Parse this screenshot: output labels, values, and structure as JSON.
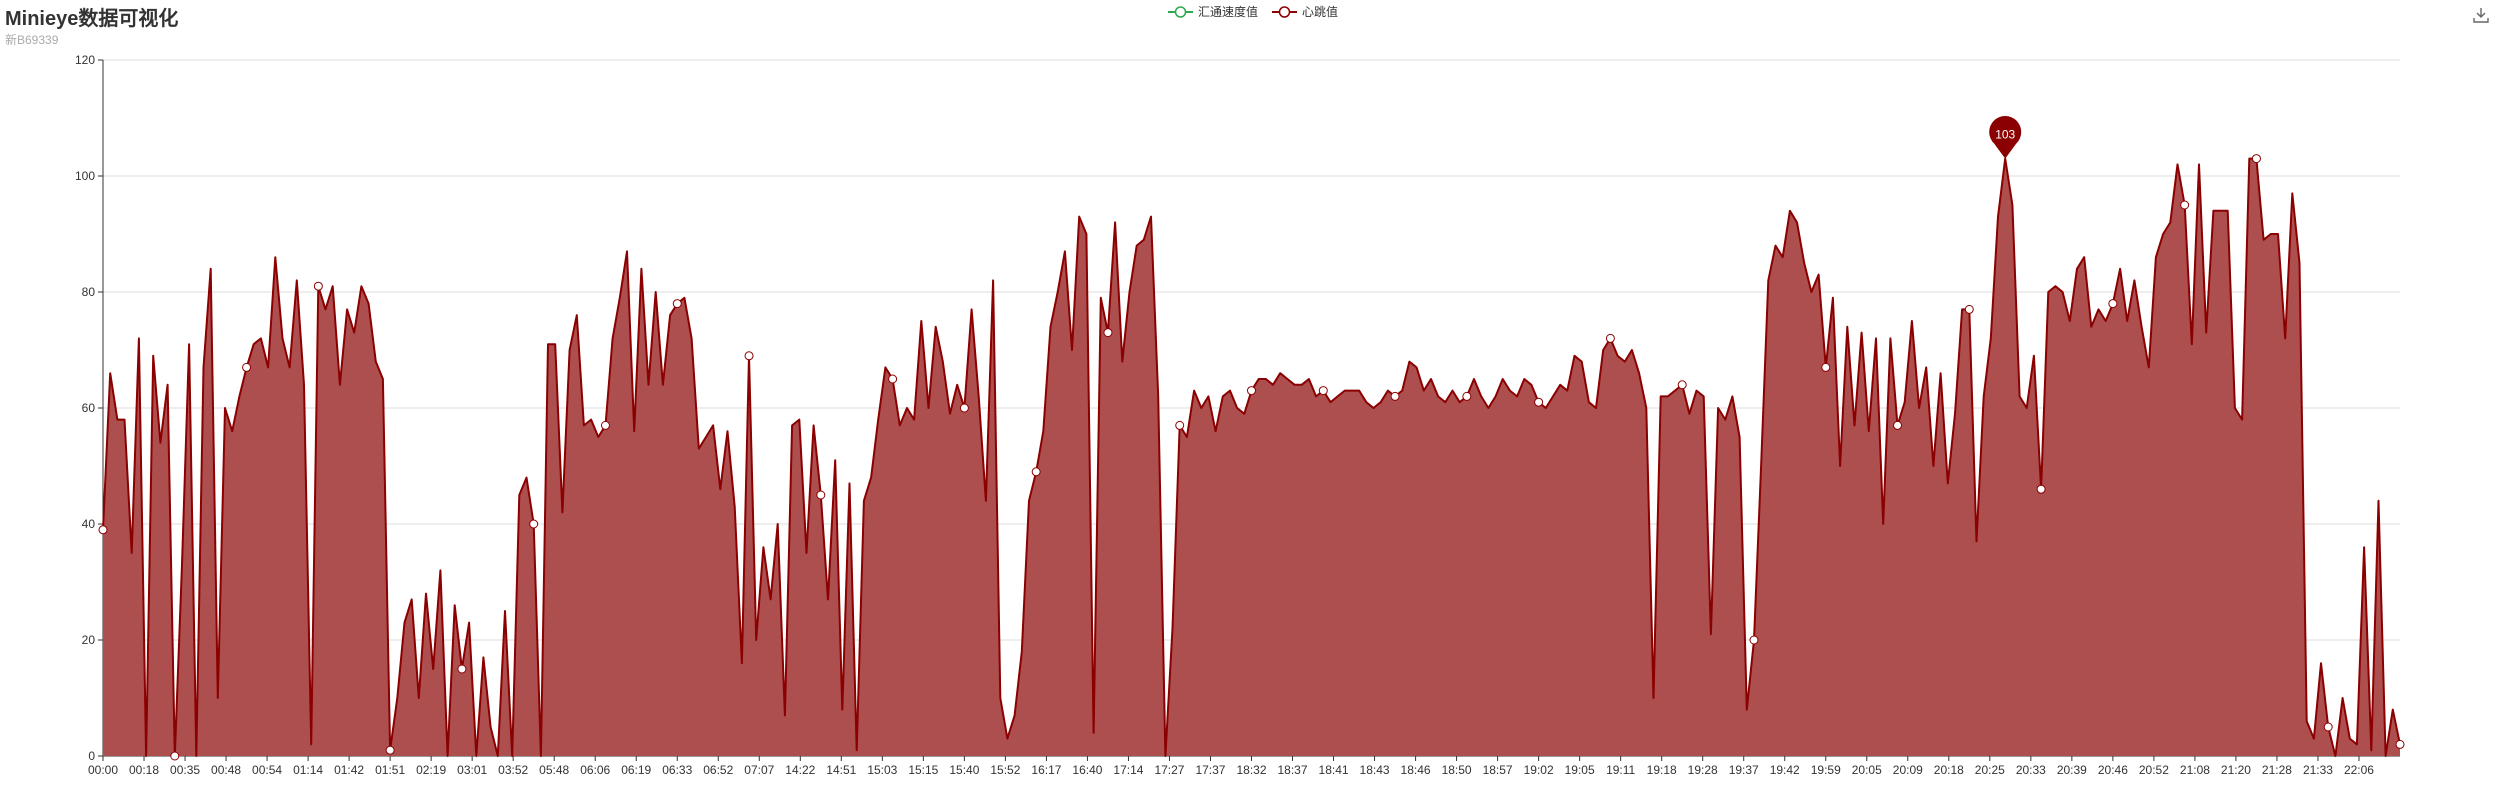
{
  "title": "Minieye数据可视化",
  "subtitle": "新B69339",
  "legend": {
    "items": [
      {
        "name": "汇通速度值",
        "color": "#2fa84f"
      },
      {
        "name": "心跳值",
        "color": "#8b0000"
      }
    ]
  },
  "toolbar": {
    "save_icon": "download-icon"
  },
  "chart_data": {
    "type": "area",
    "title": "Minieye数据可视化",
    "subtitle": "新B69339",
    "xlabel": "",
    "ylabel": "",
    "ylim": [
      0,
      120
    ],
    "yticks": [
      0,
      20,
      40,
      60,
      80,
      100,
      120
    ],
    "grid": true,
    "legend_position": "top-center",
    "xtick_labels": [
      "00:00",
      "00:18",
      "00:35",
      "00:48",
      "00:54",
      "01:14",
      "01:42",
      "01:51",
      "02:19",
      "03:01",
      "03:52",
      "05:48",
      "06:06",
      "06:19",
      "06:33",
      "06:52",
      "07:07",
      "14:22",
      "14:51",
      "15:03",
      "15:15",
      "15:40",
      "15:52",
      "16:17",
      "16:40",
      "17:14",
      "17:27",
      "17:37",
      "18:32",
      "18:37",
      "18:41",
      "18:43",
      "18:46",
      "18:50",
      "18:57",
      "19:02",
      "19:05",
      "19:11",
      "19:18",
      "19:28",
      "19:37",
      "19:42",
      "19:59",
      "20:05",
      "20:09",
      "20:18",
      "20:25",
      "20:33",
      "20:39",
      "20:46",
      "20:52",
      "21:08",
      "21:20",
      "21:28",
      "21:33",
      "22:06"
    ],
    "series": [
      {
        "name": "汇通速度值",
        "color": "#2fa84f",
        "values": []
      },
      {
        "name": "心跳值",
        "color": "#8b0000",
        "fill": "#ad4f4f",
        "values": [
          39,
          66,
          58,
          58,
          35,
          72,
          0,
          69,
          54,
          64,
          0,
          33,
          71,
          0,
          67,
          84,
          10,
          60,
          56,
          62,
          67,
          71,
          72,
          67,
          86,
          72,
          67,
          82,
          64,
          2,
          81,
          77,
          81,
          64,
          77,
          73,
          81,
          78,
          68,
          65,
          1,
          10,
          23,
          27,
          10,
          28,
          15,
          32,
          0,
          26,
          15,
          23,
          0,
          17,
          5,
          0,
          25,
          0,
          45,
          48,
          40,
          0,
          71,
          71,
          42,
          70,
          76,
          57,
          58,
          55,
          57,
          72,
          79,
          87,
          56,
          84,
          64,
          80,
          64,
          76,
          78,
          79,
          72,
          53,
          55,
          57,
          46,
          56,
          43,
          16,
          69,
          20,
          36,
          27,
          40,
          7,
          57,
          58,
          35,
          57,
          45,
          27,
          51,
          8,
          47,
          1,
          44,
          48,
          58,
          67,
          65,
          57,
          60,
          58,
          75,
          60,
          74,
          68,
          59,
          64,
          60,
          77,
          62,
          44,
          82,
          10,
          3,
          7,
          18,
          44,
          49,
          56,
          74,
          80,
          87,
          70,
          93,
          90,
          4,
          79,
          73,
          92,
          68,
          80,
          88,
          89,
          93,
          62,
          0,
          22,
          57,
          55,
          63,
          60,
          62,
          56,
          62,
          63,
          60,
          59,
          63,
          65,
          65,
          64,
          66,
          65,
          64,
          64,
          65,
          62,
          63,
          61,
          62,
          63,
          63,
          63,
          61,
          60,
          61,
          63,
          62,
          63,
          68,
          67,
          63,
          65,
          62,
          61,
          63,
          61,
          62,
          65,
          62,
          60,
          62,
          65,
          63,
          62,
          65,
          64,
          61,
          60,
          62,
          64,
          63,
          69,
          68,
          61,
          60,
          70,
          72,
          69,
          68,
          70,
          66,
          60,
          10,
          62,
          62,
          63,
          64,
          59,
          63,
          62,
          21,
          60,
          58,
          62,
          55,
          8,
          20,
          50,
          82,
          88,
          86,
          94,
          92,
          85,
          80,
          83,
          67,
          79,
          50,
          74,
          57,
          73,
          56,
          72,
          40,
          72,
          57,
          61,
          75,
          60,
          67,
          50,
          66,
          47,
          59,
          77,
          77,
          37,
          62,
          72,
          93,
          103,
          95,
          62,
          60,
          69,
          46,
          80,
          81,
          80,
          75,
          84,
          86,
          74,
          77,
          75,
          78,
          84,
          75,
          82,
          74,
          67,
          86,
          90,
          92,
          102,
          95,
          71,
          102,
          73,
          94,
          94,
          94,
          60,
          58,
          103,
          103,
          89,
          90,
          90,
          72,
          97,
          85,
          6,
          3,
          16,
          5,
          0,
          10,
          3,
          2,
          36,
          1,
          44,
          0,
          8,
          2
        ],
        "max_marker": {
          "value": 103,
          "label": "103"
        }
      }
    ]
  }
}
